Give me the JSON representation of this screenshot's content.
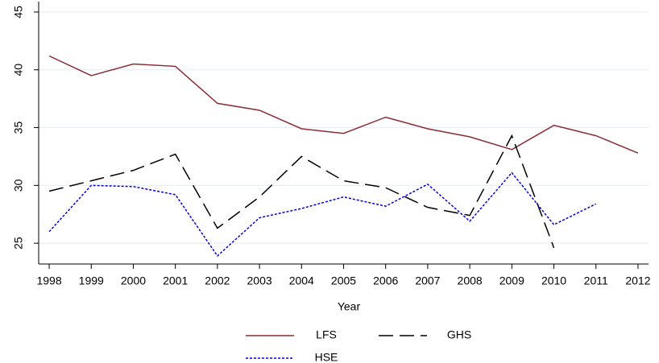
{
  "chart_data": {
    "type": "line",
    "x_label": "Year",
    "x": [
      1998,
      1999,
      2000,
      2001,
      2002,
      2003,
      2004,
      2005,
      2006,
      2007,
      2008,
      2009,
      2010,
      2011,
      2012
    ],
    "xlim": [
      1997.75,
      2012.25
    ],
    "xticks": [
      1998,
      1999,
      2000,
      2001,
      2002,
      2003,
      2004,
      2005,
      2006,
      2007,
      2008,
      2009,
      2010,
      2011,
      2012
    ],
    "ylim": [
      23.2,
      45.9
    ],
    "yticks": [
      25,
      30,
      35,
      40,
      45
    ],
    "grid": true,
    "legend": "bottom",
    "series": [
      {
        "name": "LFS",
        "color": "#8b2c35",
        "style": "solid",
        "values": [
          41.2,
          39.5,
          40.5,
          40.3,
          37.1,
          36.5,
          34.9,
          34.5,
          35.9,
          34.9,
          34.2,
          33.1,
          35.2,
          34.3,
          32.8
        ]
      },
      {
        "name": "GHS",
        "color": "#000000",
        "style": "dashed",
        "values": [
          29.5,
          30.4,
          31.3,
          32.7,
          26.3,
          29.0,
          32.5,
          30.4,
          29.8,
          28.1,
          27.4,
          34.3,
          24.6,
          null,
          null
        ]
      },
      {
        "name": "HSE",
        "color": "#0000ee",
        "style": "dotted",
        "values": [
          26.0,
          30.0,
          29.9,
          29.2,
          23.9,
          27.2,
          28.0,
          29.0,
          28.2,
          30.1,
          26.9,
          31.1,
          26.6,
          28.4,
          null
        ]
      }
    ]
  }
}
